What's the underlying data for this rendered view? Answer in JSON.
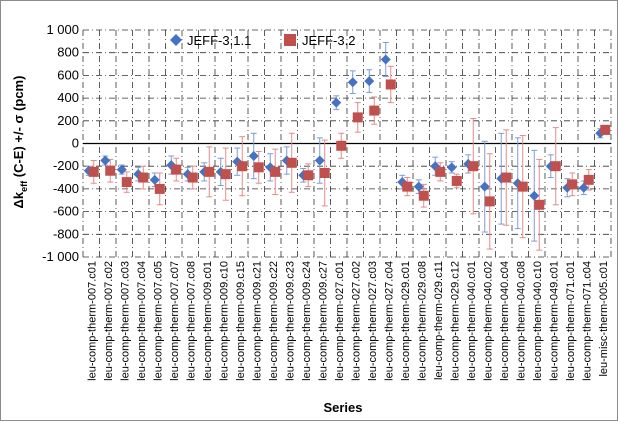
{
  "chart_data": {
    "type": "scatter",
    "title": "",
    "xlabel": "Series",
    "ylabel_main": "Δk",
    "ylabel_sub": "eff",
    "ylabel_rest": " (C-E) +/- σ (pcm)",
    "ylim": [
      -1000,
      1000
    ],
    "yticks": [
      1000,
      800,
      600,
      400,
      200,
      0,
      -200,
      -400,
      -600,
      -800,
      -1000
    ],
    "ytick_labels": [
      "1 000",
      "800",
      "600",
      "400",
      "200",
      "0",
      "-200",
      "-400",
      "-600",
      "-800",
      "-1 000"
    ],
    "grid": true,
    "legend_position": "top-left",
    "categories": [
      "leu-comp-therm-007.c01",
      "leu-comp-therm-007.c02",
      "leu-comp-therm-007.c03",
      "leu-comp-therm-007.c04",
      "leu-comp-therm-007.c05",
      "leu-comp-therm-007.c07",
      "leu-comp-therm-007.c08",
      "leu-comp-therm-009.c01",
      "leu-comp-therm-009.c10",
      "leu-comp-therm-009.c15",
      "leu-comp-therm-009.c21",
      "leu-comp-therm-009.c22",
      "leu-comp-therm-009.c23",
      "leu-comp-therm-009.c24",
      "leu-comp-therm-009.c27",
      "leu-comp-therm-027.c01",
      "leu-comp-therm-027.c02",
      "leu-comp-therm-027.c03",
      "leu-comp-therm-027.c04",
      "leu-comp-therm-029.c01",
      "leu-comp-therm-029.c08",
      "leu-comp-therm-029.c11",
      "leu-comp-therm-029.c12",
      "leu-comp-therm-040.c01",
      "leu-comp-therm-040.c02",
      "leu-comp-therm-040.c04",
      "leu-comp-therm-040.c08",
      "leu-comp-therm-040.c10",
      "leu-comp-therm-049.c01",
      "leu-comp-therm-071.c01",
      "leu-comp-therm-071.c04",
      "leu-misc-therm-005.c01"
    ],
    "series": [
      {
        "name": "JEFF-3.1.1",
        "marker": "diamond",
        "color": "#4472C4",
        "values": [
          -240,
          -150,
          -230,
          -270,
          -320,
          -190,
          -270,
          -250,
          -250,
          -160,
          -110,
          -210,
          -150,
          -280,
          -150,
          360,
          540,
          550,
          740,
          -340,
          -380,
          -200,
          -210,
          -180,
          -380,
          -310,
          -350,
          -460,
          -200,
          -390,
          -390,
          90
        ],
        "errors": [
          40,
          40,
          40,
          60,
          60,
          80,
          60,
          80,
          120,
          120,
          200,
          120,
          120,
          60,
          200,
          60,
          100,
          100,
          150,
          60,
          60,
          80,
          50,
          80,
          400,
          400,
          400,
          400,
          100,
          80,
          60,
          40
        ]
      },
      {
        "name": "JEFF-3.2",
        "marker": "square",
        "color": "#C0504D",
        "values": [
          -250,
          -240,
          -340,
          -300,
          -400,
          -230,
          -300,
          -250,
          -270,
          -200,
          -210,
          -250,
          -170,
          -280,
          -260,
          -20,
          230,
          290,
          520,
          -380,
          -460,
          -250,
          -330,
          -200,
          -510,
          -300,
          -380,
          -540,
          -200,
          -360,
          -320,
          120
        ],
        "errors": [
          100,
          100,
          90,
          100,
          140,
          100,
          100,
          220,
          230,
          260,
          140,
          200,
          260,
          100,
          290,
          110,
          130,
          120,
          160,
          80,
          100,
          80,
          60,
          420,
          420,
          420,
          450,
          400,
          340,
          100,
          90,
          40
        ]
      }
    ]
  }
}
